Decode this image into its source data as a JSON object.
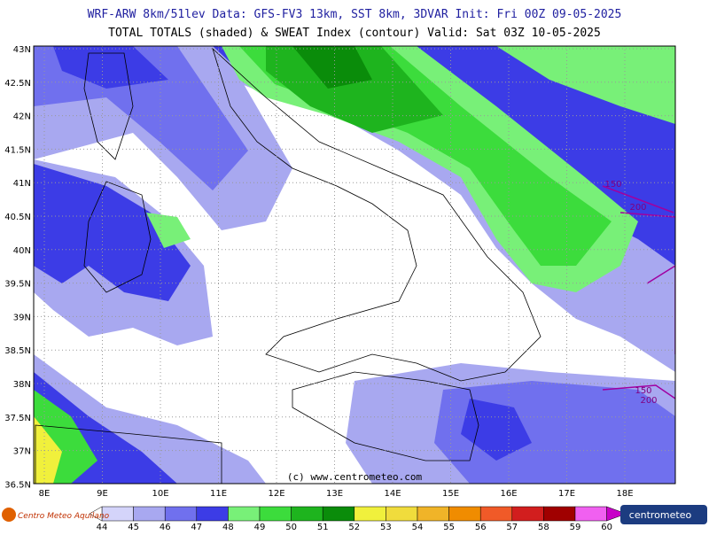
{
  "header": {
    "line1": "WRF-ARW 8km/51lev  Data: GFS-FV3 13km, SST 8km, 3DVAR  Init: Fri 00Z 09-05-2025",
    "line2": "TOTAL TOTALS (shaded) & SWEAT Index (contour)  Valid: Sat 03Z 10-05-2025"
  },
  "lat_labels": [
    "43N",
    "42.5N",
    "42N",
    "41.5N",
    "41N",
    "40.5N",
    "40N",
    "39.5N",
    "39N",
    "38.5N",
    "38N",
    "37.5N",
    "37N",
    "36.5N"
  ],
  "lon_labels": [
    "8E",
    "9E",
    "10E",
    "11E",
    "12E",
    "13E",
    "14E",
    "15E",
    "16E",
    "17E",
    "18E"
  ],
  "contour_labels": [
    "150",
    "200",
    "150",
    "200"
  ],
  "credit": "(c) www.centrometeo.com",
  "logo_left": "Centro Meteo Aquilano",
  "logo_right": "centrometeo",
  "colorbar": {
    "labels": [
      "44",
      "45",
      "46",
      "47",
      "48",
      "49",
      "50",
      "51",
      "52",
      "53",
      "54",
      "55",
      "56",
      "57",
      "58",
      "59",
      "60"
    ],
    "colors": [
      "#d4d4fa",
      "#a8a8f0",
      "#7070ee",
      "#3c3ce6",
      "#78f078",
      "#3cdc3c",
      "#1eb41e",
      "#0a8c0a",
      "#f0f03c",
      "#f0dc3c",
      "#f0b428",
      "#f08c00",
      "#f05a28",
      "#d21e1e",
      "#a00000",
      "#f060f0",
      "#c800c8"
    ]
  }
}
